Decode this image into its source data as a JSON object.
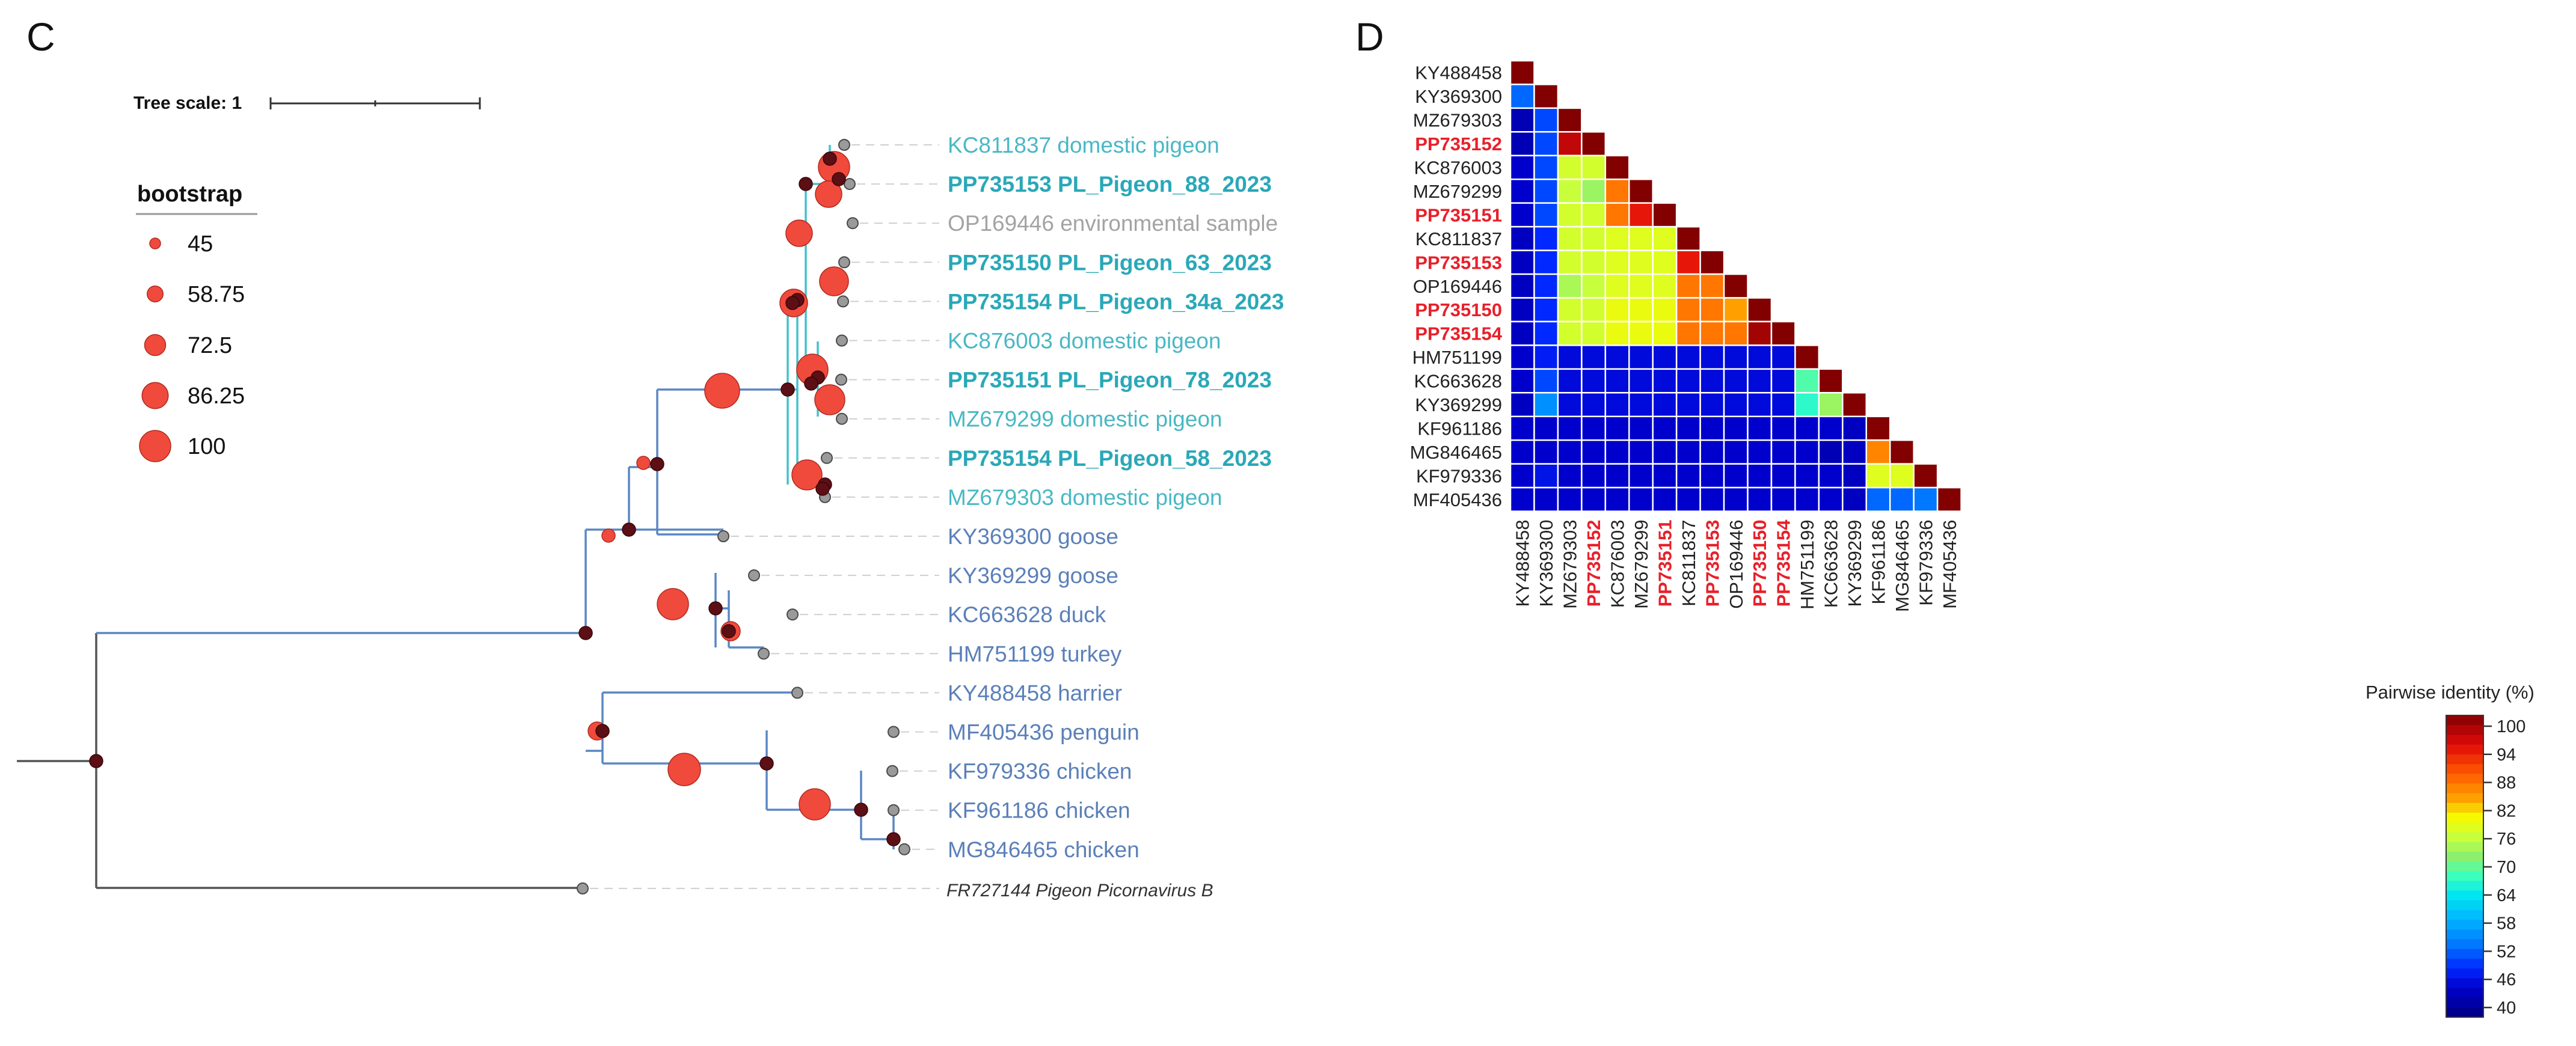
{
  "panel_c": {
    "label": "C",
    "tree_scale_label": "Tree scale: 1",
    "legend": {
      "title": "bootstrap",
      "items": [
        {
          "label": "45",
          "value": 45
        },
        {
          "label": "58.75",
          "value": 58.75
        },
        {
          "label": "72.5",
          "value": 72.5
        },
        {
          "label": "86.25",
          "value": 86.25
        },
        {
          "label": "100",
          "value": 100
        }
      ]
    },
    "taxa": [
      {
        "text": "KC811837 domestic pigeon",
        "color": "#49b8c4",
        "bold": false
      },
      {
        "text": "PP735153 PL_Pigeon_88_2023",
        "color": "#2aa8b8",
        "bold": true
      },
      {
        "text": "OP169446 environmental sample",
        "color": "#a3a3a3",
        "bold": false
      },
      {
        "text": "PP735150 PL_Pigeon_63_2023",
        "color": "#2aa8b8",
        "bold": true
      },
      {
        "text": "PP735154 PL_Pigeon_34a_2023",
        "color": "#2aa8b8",
        "bold": true
      },
      {
        "text": "KC876003 domestic pigeon",
        "color": "#49b8c4",
        "bold": false
      },
      {
        "text": "PP735151 PL_Pigeon_78_2023",
        "color": "#2aa8b8",
        "bold": true
      },
      {
        "text": "MZ679299 domestic pigeon",
        "color": "#49b8c4",
        "bold": false
      },
      {
        "text": "PP735154 PL_Pigeon_58_2023",
        "color": "#2aa8b8",
        "bold": true
      },
      {
        "text": "MZ679303 domestic pigeon",
        "color": "#49b8c4",
        "bold": false
      },
      {
        "text": "KY369300 goose",
        "color": "#5b80b8",
        "bold": false
      },
      {
        "text": "KY369299 goose",
        "color": "#5b80b8",
        "bold": false
      },
      {
        "text": "KC663628 duck",
        "color": "#5b80b8",
        "bold": false
      },
      {
        "text": "HM751199 turkey",
        "color": "#5b80b8",
        "bold": false
      },
      {
        "text": "KY488458 harrier",
        "color": "#5b80b8",
        "bold": false
      },
      {
        "text": "MF405436 penguin",
        "color": "#5b80b8",
        "bold": false
      },
      {
        "text": "KF979336 chicken",
        "color": "#5b80b8",
        "bold": false
      },
      {
        "text": "KF961186 chicken",
        "color": "#5b80b8",
        "bold": false
      },
      {
        "text": "MG846465 chicken",
        "color": "#5b80b8",
        "bold": false
      },
      {
        "text": "FR727144 Pigeon Picornavirus B",
        "color": "#333333",
        "bold": false,
        "italic": true
      }
    ]
  },
  "chart_data": {
    "type": "heatmap",
    "panel_label": "D",
    "title": "Pairwise identity (%)",
    "labels": [
      "KY488458",
      "KY369300",
      "MZ679303",
      "PP735152",
      "KC876003",
      "MZ679299",
      "PP735151",
      "KC811837",
      "PP735153",
      "OP169446",
      "PP735150",
      "PP735154",
      "HM751199",
      "KC663628",
      "KY369299",
      "KF961186",
      "MG846465",
      "KF979336",
      "MF405436"
    ],
    "highlight_labels": [
      "PP735152",
      "PP735151",
      "PP735153",
      "PP735150",
      "PP735154"
    ],
    "highlight_color": "#e8202a",
    "colorbar_ticks": [
      100,
      94,
      88,
      82,
      76,
      70,
      64,
      58,
      52,
      46,
      40
    ],
    "colorbar_range": [
      38,
      100
    ],
    "matrix": [
      [
        100
      ],
      [
        52,
        100
      ],
      [
        42,
        50,
        100
      ],
      [
        42,
        50,
        96,
        100
      ],
      [
        44,
        50,
        76,
        76,
        100
      ],
      [
        44,
        50,
        75,
        72,
        86,
        100
      ],
      [
        44,
        50,
        76,
        76,
        86,
        93,
        100
      ],
      [
        43,
        48,
        76,
        76,
        77,
        77,
        77,
        100
      ],
      [
        43,
        48,
        76,
        76,
        77,
        77,
        77,
        93,
        100
      ],
      [
        43,
        48,
        73,
        75,
        77,
        77,
        77,
        86,
        86,
        100
      ],
      [
        43,
        48,
        76,
        76,
        78,
        78,
        78,
        86,
        86,
        83,
        100
      ],
      [
        43,
        48,
        76,
        76,
        78,
        78,
        78,
        86,
        86,
        86,
        98,
        100
      ],
      [
        44,
        47,
        45,
        45,
        45,
        45,
        45,
        45,
        45,
        45,
        45,
        45,
        100
      ],
      [
        44,
        50,
        45,
        45,
        45,
        45,
        45,
        45,
        45,
        45,
        45,
        45,
        68,
        100
      ],
      [
        43,
        55,
        45,
        45,
        45,
        45,
        45,
        45,
        45,
        45,
        45,
        45,
        66,
        72,
        100
      ],
      [
        44,
        44,
        44,
        44,
        44,
        44,
        44,
        44,
        44,
        44,
        44,
        44,
        44,
        44,
        43,
        100
      ],
      [
        44,
        44,
        44,
        44,
        44,
        44,
        44,
        44,
        44,
        44,
        44,
        44,
        44,
        42,
        43,
        85,
        100
      ],
      [
        44,
        46,
        44,
        44,
        44,
        44,
        44,
        44,
        44,
        44,
        44,
        44,
        44,
        44,
        43,
        77,
        77,
        100
      ],
      [
        44,
        44,
        44,
        44,
        44,
        44,
        44,
        44,
        44,
        44,
        44,
        44,
        44,
        44,
        43,
        52,
        52,
        53,
        100
      ]
    ]
  }
}
